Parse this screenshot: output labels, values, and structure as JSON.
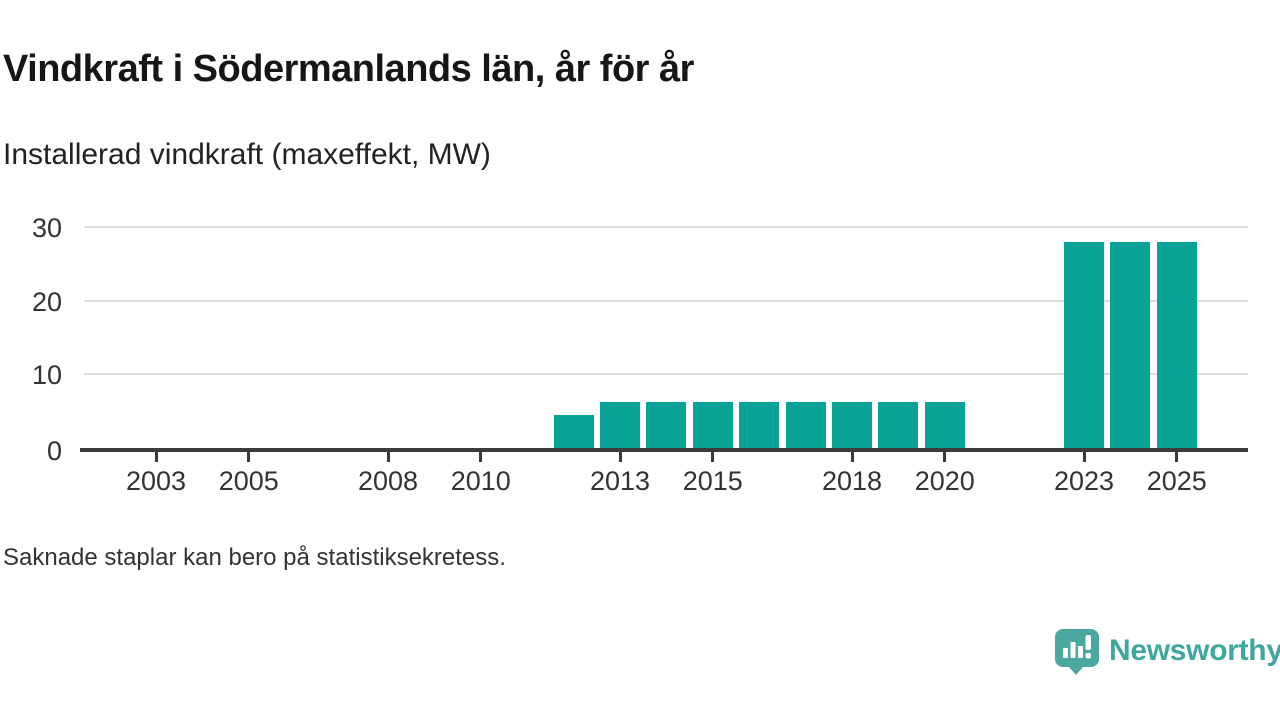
{
  "chart_data": {
    "type": "bar",
    "title": "Vindkraft i Södermanlands län, år för år",
    "subtitle": "Installerad vindkraft (maxeffekt, MW)",
    "footnote": "Saknade staplar kan bero på statistiksekretess.",
    "ylabel": "",
    "xlabel": "",
    "unit": "MW",
    "x": [
      2012,
      2013,
      2014,
      2015,
      2016,
      2017,
      2018,
      2019,
      2020,
      2023,
      2024,
      2025
    ],
    "values": [
      4.5,
      6.3,
      6.3,
      6.3,
      6.3,
      6.3,
      6.3,
      6.3,
      6.3,
      28,
      28,
      28
    ],
    "missing_years": [
      2002,
      2003,
      2004,
      2005,
      2006,
      2007,
      2008,
      2009,
      2010,
      2011,
      2021,
      2022
    ],
    "x_range": [
      2002,
      2026
    ],
    "x_tick_labels": [
      "2003",
      "2005",
      "2008",
      "2010",
      "2013",
      "2015",
      "2018",
      "2020",
      "2023",
      "2025"
    ],
    "y_ticks": [
      0,
      10,
      20,
      30
    ],
    "ylim": [
      0,
      30
    ],
    "grid": true,
    "legend": false,
    "bar_color": "#0aa296",
    "axis_color": "#3b3b3b",
    "gridline_color": "#dcdcdc"
  },
  "branding": {
    "wordmark": "Newsworthy",
    "color": "#3ea79e",
    "icon": "newsworthy-speech-bubble-bars-icon"
  }
}
